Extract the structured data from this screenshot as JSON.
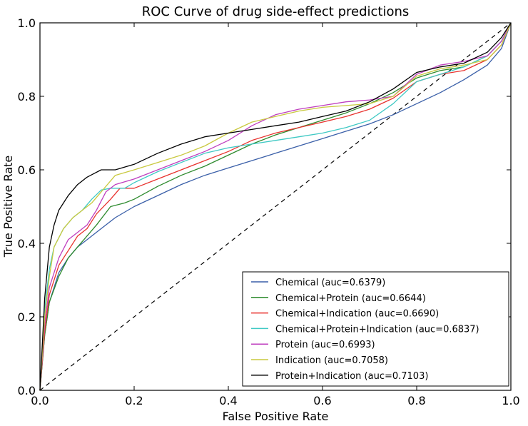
{
  "chart_data": {
    "type": "line",
    "title": "ROC Curve of drug side-effect predictions",
    "xlabel": "False Positive Rate",
    "ylabel": "True Positive Rate",
    "xlim": [
      0.0,
      1.0
    ],
    "ylim": [
      0.0,
      1.0
    ],
    "xticks": [
      0.0,
      0.2,
      0.4,
      0.6,
      0.8,
      1.0
    ],
    "yticks": [
      0.0,
      0.2,
      0.4,
      0.6,
      0.8,
      1.0
    ],
    "xtick_labels": [
      "0.0",
      "0.2",
      "0.4",
      "0.6",
      "0.8",
      "1.0"
    ],
    "ytick_labels": [
      "0.0",
      "0.2",
      "0.4",
      "0.6",
      "0.8",
      "1.0"
    ],
    "grid": false,
    "legend_position": "lower-right",
    "reference_line": {
      "x": [
        0,
        1
      ],
      "y": [
        0,
        1
      ],
      "style": "dashed",
      "color": "#000000"
    },
    "series": [
      {
        "name": "Chemical (auc=0.6379)",
        "color": "#3a5fa8",
        "x": [
          0,
          0.01,
          0.02,
          0.04,
          0.06,
          0.08,
          0.1,
          0.13,
          0.16,
          0.2,
          0.25,
          0.3,
          0.35,
          0.4,
          0.45,
          0.5,
          0.55,
          0.6,
          0.65,
          0.7,
          0.75,
          0.8,
          0.85,
          0.9,
          0.95,
          0.98,
          1.0
        ],
        "y": [
          0,
          0.15,
          0.24,
          0.32,
          0.36,
          0.39,
          0.41,
          0.44,
          0.47,
          0.5,
          0.53,
          0.56,
          0.585,
          0.605,
          0.625,
          0.645,
          0.665,
          0.685,
          0.705,
          0.725,
          0.75,
          0.78,
          0.81,
          0.845,
          0.885,
          0.93,
          1.0
        ]
      },
      {
        "name": "Chemical+Protein (auc=0.6644)",
        "color": "#2e8b2e",
        "x": [
          0,
          0.01,
          0.02,
          0.04,
          0.06,
          0.08,
          0.1,
          0.12,
          0.15,
          0.18,
          0.2,
          0.25,
          0.3,
          0.35,
          0.4,
          0.45,
          0.5,
          0.55,
          0.6,
          0.65,
          0.7,
          0.75,
          0.8,
          0.85,
          0.9,
          0.95,
          0.98,
          1.0
        ],
        "y": [
          0,
          0.15,
          0.24,
          0.31,
          0.36,
          0.39,
          0.42,
          0.45,
          0.5,
          0.51,
          0.52,
          0.555,
          0.585,
          0.61,
          0.64,
          0.67,
          0.695,
          0.715,
          0.735,
          0.755,
          0.78,
          0.81,
          0.85,
          0.87,
          0.88,
          0.91,
          0.95,
          1.0
        ]
      },
      {
        "name": "Chemical+Indication (auc=0.6690)",
        "color": "#e8322e",
        "x": [
          0,
          0.01,
          0.02,
          0.04,
          0.06,
          0.08,
          0.1,
          0.12,
          0.15,
          0.17,
          0.2,
          0.25,
          0.3,
          0.35,
          0.4,
          0.45,
          0.5,
          0.55,
          0.6,
          0.65,
          0.7,
          0.75,
          0.8,
          0.85,
          0.9,
          0.95,
          0.98,
          1.0
        ],
        "y": [
          0,
          0.16,
          0.26,
          0.34,
          0.38,
          0.42,
          0.44,
          0.48,
          0.52,
          0.55,
          0.55,
          0.575,
          0.6,
          0.625,
          0.65,
          0.68,
          0.7,
          0.715,
          0.73,
          0.745,
          0.765,
          0.795,
          0.84,
          0.86,
          0.87,
          0.9,
          0.94,
          1.0
        ]
      },
      {
        "name": "Chemical+Protein+Indication (auc=0.6837)",
        "color": "#3fc9c4",
        "x": [
          0,
          0.01,
          0.02,
          0.03,
          0.05,
          0.07,
          0.09,
          0.11,
          0.13,
          0.15,
          0.18,
          0.2,
          0.25,
          0.3,
          0.35,
          0.4,
          0.45,
          0.5,
          0.55,
          0.6,
          0.65,
          0.7,
          0.75,
          0.8,
          0.85,
          0.9,
          0.95,
          0.98,
          1.0
        ],
        "y": [
          0,
          0.22,
          0.33,
          0.39,
          0.44,
          0.47,
          0.49,
          0.52,
          0.545,
          0.55,
          0.55,
          0.565,
          0.595,
          0.62,
          0.645,
          0.66,
          0.67,
          0.68,
          0.69,
          0.7,
          0.715,
          0.735,
          0.78,
          0.84,
          0.86,
          0.88,
          0.91,
          0.95,
          1.0
        ]
      },
      {
        "name": "Protein (auc=0.6993)",
        "color": "#bf3fbf",
        "x": [
          0,
          0.01,
          0.02,
          0.04,
          0.06,
          0.08,
          0.1,
          0.12,
          0.14,
          0.16,
          0.2,
          0.25,
          0.3,
          0.35,
          0.4,
          0.45,
          0.5,
          0.55,
          0.6,
          0.65,
          0.7,
          0.75,
          0.8,
          0.85,
          0.9,
          0.95,
          0.98,
          1.0
        ],
        "y": [
          0,
          0.18,
          0.28,
          0.36,
          0.41,
          0.43,
          0.45,
          0.49,
          0.54,
          0.56,
          0.575,
          0.6,
          0.625,
          0.65,
          0.68,
          0.72,
          0.75,
          0.765,
          0.775,
          0.785,
          0.79,
          0.8,
          0.86,
          0.885,
          0.895,
          0.91,
          0.95,
          1.0
        ]
      },
      {
        "name": "Indication (auc=0.7058)",
        "color": "#c9c93f",
        "x": [
          0,
          0.01,
          0.02,
          0.03,
          0.05,
          0.07,
          0.09,
          0.11,
          0.13,
          0.16,
          0.2,
          0.25,
          0.3,
          0.35,
          0.4,
          0.45,
          0.5,
          0.55,
          0.6,
          0.65,
          0.7,
          0.75,
          0.8,
          0.85,
          0.9,
          0.95,
          0.98,
          1.0
        ],
        "y": [
          0,
          0.2,
          0.31,
          0.39,
          0.44,
          0.47,
          0.49,
          0.51,
          0.54,
          0.585,
          0.6,
          0.62,
          0.64,
          0.665,
          0.7,
          0.73,
          0.745,
          0.76,
          0.77,
          0.775,
          0.78,
          0.8,
          0.855,
          0.875,
          0.885,
          0.9,
          0.94,
          1.0
        ]
      },
      {
        "name": "Protein+Indication (auc=0.7103)",
        "color": "#000000",
        "x": [
          0,
          0.01,
          0.02,
          0.03,
          0.04,
          0.06,
          0.08,
          0.1,
          0.13,
          0.16,
          0.2,
          0.25,
          0.3,
          0.35,
          0.4,
          0.45,
          0.5,
          0.55,
          0.6,
          0.65,
          0.7,
          0.75,
          0.8,
          0.85,
          0.9,
          0.95,
          0.98,
          1.0
        ],
        "y": [
          0,
          0.25,
          0.39,
          0.45,
          0.49,
          0.53,
          0.56,
          0.58,
          0.6,
          0.6,
          0.615,
          0.645,
          0.67,
          0.69,
          0.7,
          0.71,
          0.72,
          0.73,
          0.745,
          0.76,
          0.785,
          0.82,
          0.865,
          0.88,
          0.89,
          0.92,
          0.96,
          1.0
        ]
      }
    ]
  }
}
